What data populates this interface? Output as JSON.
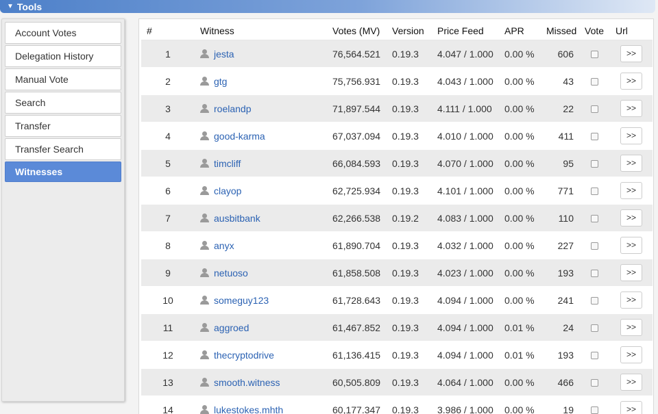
{
  "header": {
    "title": "Tools"
  },
  "sidebar": {
    "items": [
      {
        "label": "Account Votes",
        "active": false
      },
      {
        "label": "Delegation History",
        "active": false
      },
      {
        "label": "Manual Vote",
        "active": false
      },
      {
        "label": "Search",
        "active": false
      },
      {
        "label": "Transfer",
        "active": false
      },
      {
        "label": "Transfer Search",
        "active": false
      },
      {
        "label": "Witnesses",
        "active": true
      }
    ]
  },
  "table": {
    "columns": [
      "#",
      "Witness",
      "Votes (MV)",
      "Version",
      "Price Feed",
      "APR",
      "Missed",
      "Vote",
      "Url"
    ],
    "url_button_label": ">>",
    "rows": [
      {
        "rank": "1",
        "witness": "jesta",
        "votes": "76,564.521",
        "version": "0.19.3",
        "price_feed": "4.047 / 1.000",
        "apr": "0.00 %",
        "missed": "606"
      },
      {
        "rank": "2",
        "witness": "gtg",
        "votes": "75,756.931",
        "version": "0.19.3",
        "price_feed": "4.043 / 1.000",
        "apr": "0.00 %",
        "missed": "43"
      },
      {
        "rank": "3",
        "witness": "roelandp",
        "votes": "71,897.544",
        "version": "0.19.3",
        "price_feed": "4.111 / 1.000",
        "apr": "0.00 %",
        "missed": "22"
      },
      {
        "rank": "4",
        "witness": "good-karma",
        "votes": "67,037.094",
        "version": "0.19.3",
        "price_feed": "4.010 / 1.000",
        "apr": "0.00 %",
        "missed": "411"
      },
      {
        "rank": "5",
        "witness": "timcliff",
        "votes": "66,084.593",
        "version": "0.19.3",
        "price_feed": "4.070 / 1.000",
        "apr": "0.00 %",
        "missed": "95"
      },
      {
        "rank": "6",
        "witness": "clayop",
        "votes": "62,725.934",
        "version": "0.19.3",
        "price_feed": "4.101 / 1.000",
        "apr": "0.00 %",
        "missed": "771"
      },
      {
        "rank": "7",
        "witness": "ausbitbank",
        "votes": "62,266.538",
        "version": "0.19.2",
        "price_feed": "4.083 / 1.000",
        "apr": "0.00 %",
        "missed": "110"
      },
      {
        "rank": "8",
        "witness": "anyx",
        "votes": "61,890.704",
        "version": "0.19.3",
        "price_feed": "4.032 / 1.000",
        "apr": "0.00 %",
        "missed": "227"
      },
      {
        "rank": "9",
        "witness": "netuoso",
        "votes": "61,858.508",
        "version": "0.19.3",
        "price_feed": "4.023 / 1.000",
        "apr": "0.00 %",
        "missed": "193"
      },
      {
        "rank": "10",
        "witness": "someguy123",
        "votes": "61,728.643",
        "version": "0.19.3",
        "price_feed": "4.094 / 1.000",
        "apr": "0.00 %",
        "missed": "241"
      },
      {
        "rank": "11",
        "witness": "aggroed",
        "votes": "61,467.852",
        "version": "0.19.3",
        "price_feed": "4.094 / 1.000",
        "apr": "0.01 %",
        "missed": "24"
      },
      {
        "rank": "12",
        "witness": "thecryptodrive",
        "votes": "61,136.415",
        "version": "0.19.3",
        "price_feed": "4.094 / 1.000",
        "apr": "0.01 %",
        "missed": "193"
      },
      {
        "rank": "13",
        "witness": "smooth.witness",
        "votes": "60,505.809",
        "version": "0.19.3",
        "price_feed": "4.064 / 1.000",
        "apr": "0.00 %",
        "missed": "466"
      },
      {
        "rank": "14",
        "witness": "lukestokes.mhth",
        "votes": "60,177.347",
        "version": "0.19.3",
        "price_feed": "3.986 / 1.000",
        "apr": "0.00 %",
        "missed": "19"
      }
    ]
  },
  "colors": {
    "accent": "#5b8ad8",
    "link": "#2b62b3",
    "row_alt": "#ebebeb"
  }
}
